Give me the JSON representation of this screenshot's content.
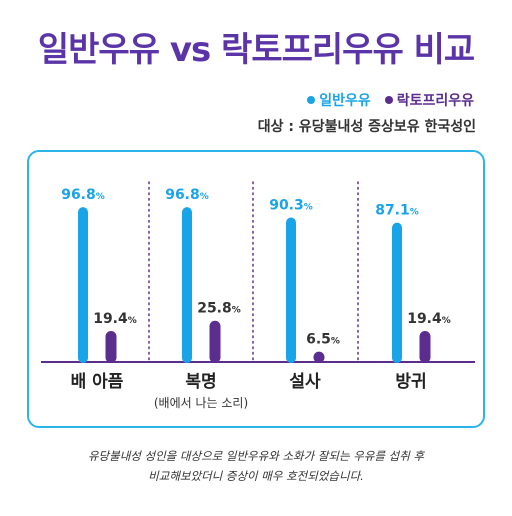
{
  "title": "일반우유 vs 락토프리우유 비교",
  "legend": [
    {
      "label": "일반우유",
      "color": "#1aa4e8"
    },
    {
      "label": "락토프리우유",
      "color": "#5b2d8e"
    }
  ],
  "subject": "대상 : 유당불내성 증상보유 한국성인",
  "footnote": {
    "line1": "유당불내성 성인을 대상으로 일반우유와 소화가 잘되는 우유를 섭취 후",
    "line2": "비교해보았더니 증상이 매우 호전되었습니다."
  },
  "chart_data": {
    "type": "bar",
    "categories": [
      "배 아픔",
      "복명",
      "설사",
      "방귀"
    ],
    "category_notes": [
      "",
      "(배에서 나는 소리)",
      "",
      ""
    ],
    "series": [
      {
        "name": "일반우유",
        "values": [
          96.8,
          96.8,
          90.3,
          87.1
        ],
        "labels": [
          "96.8",
          "96.8",
          "90.3",
          "87.1"
        ],
        "color": "#1aa4e8"
      },
      {
        "name": "락토프리우유",
        "values": [
          19.4,
          25.8,
          6.5,
          19.4
        ],
        "labels": [
          "19.4",
          "25.8",
          "6.5",
          "19.4"
        ],
        "color": "#5b2d8e"
      }
    ],
    "unit": "%",
    "ylim": [
      0,
      100
    ],
    "grid": false,
    "legend_position": "top-right"
  }
}
